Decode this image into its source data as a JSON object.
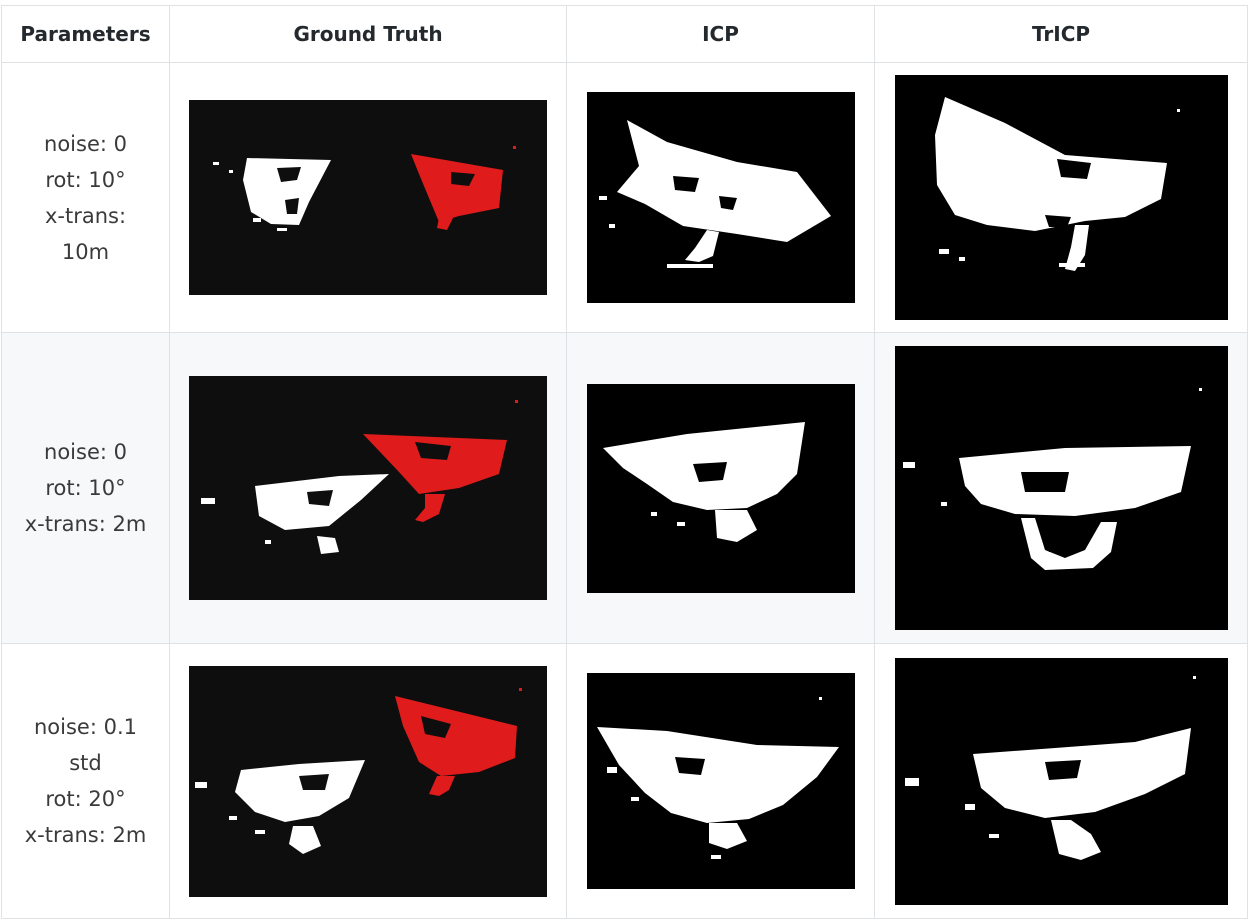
{
  "table": {
    "headers": [
      "Parameters",
      "Ground Truth",
      "ICP",
      "TrICP"
    ],
    "rows": [
      {
        "params": [
          "noise: 0",
          "rot: 10°",
          "x-trans:",
          "10m"
        ],
        "images": [
          "ground-truth-point-cloud",
          "icp-point-cloud",
          "tricp-point-cloud"
        ]
      },
      {
        "params": [
          "noise: 0",
          "rot: 10°",
          "x-trans: 2m"
        ],
        "images": [
          "ground-truth-point-cloud",
          "icp-point-cloud",
          "tricp-point-cloud"
        ]
      },
      {
        "params": [
          "noise: 0.1",
          "std",
          "rot: 20°",
          "x-trans: 2m"
        ],
        "images": [
          "ground-truth-point-cloud",
          "icp-point-cloud",
          "tricp-point-cloud"
        ]
      }
    ]
  },
  "colors": {
    "source_cloud": "#ffffff",
    "target_cloud": "#e01b1b",
    "background": "#0e0e0e",
    "border": "#dfe2e5",
    "stripe": "#f6f8fa"
  }
}
